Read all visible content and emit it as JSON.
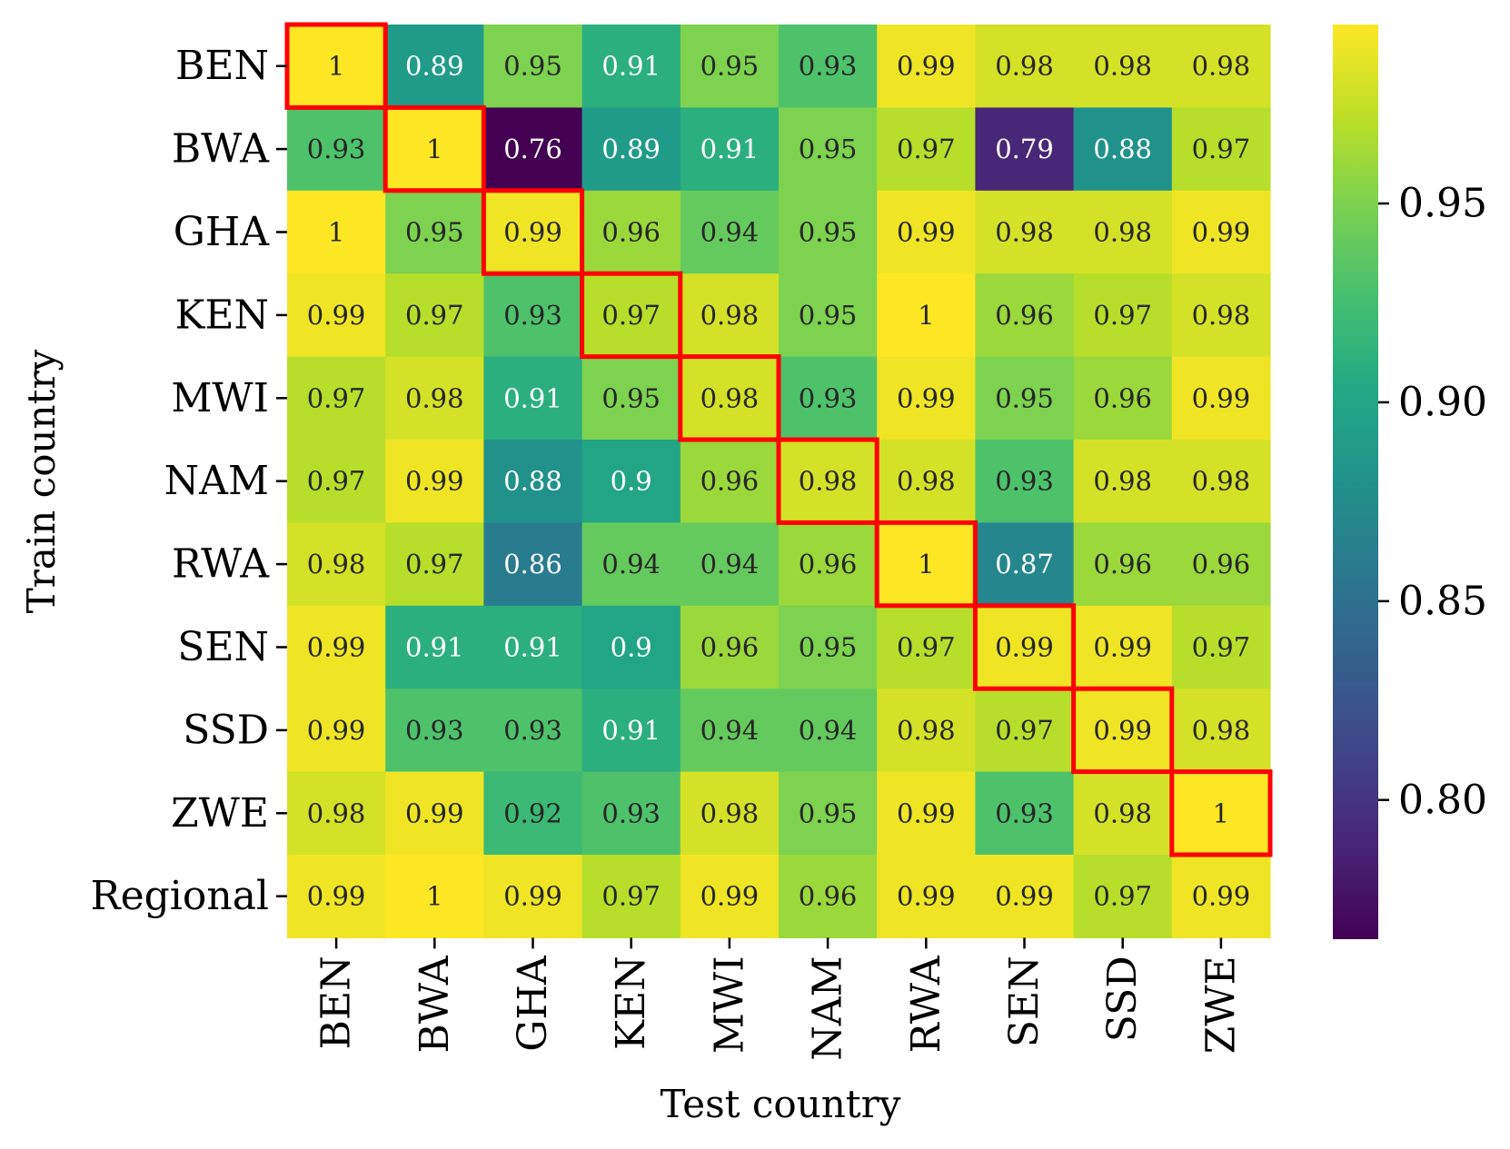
{
  "chart_data": {
    "type": "heatmap",
    "title": "",
    "xlabel": "Test country",
    "ylabel": "Train country",
    "x_categories": [
      "BEN",
      "BWA",
      "GHA",
      "KEN",
      "MWI",
      "NAM",
      "RWA",
      "SEN",
      "SSD",
      "ZWE"
    ],
    "y_categories": [
      "BEN",
      "BWA",
      "GHA",
      "KEN",
      "MWI",
      "NAM",
      "RWA",
      "SEN",
      "SSD",
      "ZWE",
      "Regional"
    ],
    "values": [
      [
        1,
        0.89,
        0.95,
        0.91,
        0.95,
        0.93,
        0.99,
        0.98,
        0.98,
        0.98
      ],
      [
        0.93,
        1,
        0.76,
        0.89,
        0.91,
        0.95,
        0.97,
        0.79,
        0.88,
        0.97
      ],
      [
        1,
        0.95,
        0.99,
        0.96,
        0.94,
        0.95,
        0.99,
        0.98,
        0.98,
        0.99
      ],
      [
        0.99,
        0.97,
        0.93,
        0.97,
        0.98,
        0.95,
        1,
        0.96,
        0.97,
        0.98
      ],
      [
        0.97,
        0.98,
        0.91,
        0.95,
        0.98,
        0.93,
        0.99,
        0.95,
        0.96,
        0.99
      ],
      [
        0.97,
        0.99,
        0.88,
        0.9,
        0.96,
        0.98,
        0.98,
        0.93,
        0.98,
        0.98
      ],
      [
        0.98,
        0.97,
        0.86,
        0.94,
        0.94,
        0.96,
        1,
        0.87,
        0.96,
        0.96
      ],
      [
        0.99,
        0.91,
        0.91,
        0.9,
        0.96,
        0.95,
        0.97,
        0.99,
        0.99,
        0.97
      ],
      [
        0.99,
        0.93,
        0.93,
        0.91,
        0.94,
        0.94,
        0.98,
        0.97,
        0.99,
        0.98
      ],
      [
        0.98,
        0.99,
        0.92,
        0.93,
        0.98,
        0.95,
        0.99,
        0.93,
        0.98,
        1
      ],
      [
        0.99,
        1,
        0.99,
        0.97,
        0.99,
        0.96,
        0.99,
        0.99,
        0.97,
        0.99
      ]
    ],
    "highlighted_cells": [
      [
        0,
        0
      ],
      [
        1,
        1
      ],
      [
        2,
        2
      ],
      [
        3,
        3
      ],
      [
        4,
        4
      ],
      [
        5,
        5
      ],
      [
        6,
        6
      ],
      [
        7,
        7
      ],
      [
        8,
        8
      ],
      [
        9,
        9
      ]
    ],
    "highlight_color": "#ff0000",
    "colormap": "viridis",
    "vmin": 0.765,
    "vmax": 0.995,
    "colorbar_ticks": [
      0.95,
      0.9,
      0.85,
      0.8
    ],
    "colorbar_tick_labels": [
      "0.95",
      "0.90",
      "0.85",
      "0.80"
    ],
    "grid": false
  }
}
